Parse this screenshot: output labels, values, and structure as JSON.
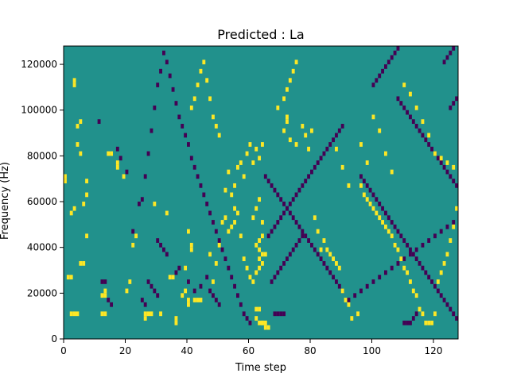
{
  "chart_data": {
    "type": "heatmap",
    "title": "Predicted : La",
    "xlabel": "Time step",
    "ylabel": "Frequency (Hz)",
    "xlim": [
      0,
      128
    ],
    "ylim": [
      0,
      128000
    ],
    "x_ticks": [
      0,
      20,
      40,
      60,
      80,
      100,
      120
    ],
    "y_ticks": [
      0,
      20000,
      40000,
      60000,
      80000,
      100000,
      120000
    ],
    "x_tick_labels": [
      "0",
      "20",
      "40",
      "60",
      "80",
      "100",
      "120"
    ],
    "y_tick_labels": [
      "0",
      "20000",
      "40000",
      "60000",
      "80000",
      "100000",
      "120000"
    ],
    "grid": false,
    "n_time_steps": 128,
    "n_freq_bins": 64,
    "freq_bin_hz": 2000,
    "colors": {
      "background": "#21918c",
      "high": "#fde725",
      "low": "#440154"
    },
    "high_cells": [
      [
        2,
        5
      ],
      [
        3,
        5
      ],
      [
        4,
        5
      ],
      [
        0,
        34
      ],
      [
        0,
        35
      ],
      [
        3,
        56
      ],
      [
        3,
        55
      ],
      [
        4,
        46
      ],
      [
        5,
        47
      ],
      [
        4,
        42
      ],
      [
        5,
        40
      ],
      [
        2,
        27
      ],
      [
        3,
        28
      ],
      [
        1,
        13
      ],
      [
        2,
        13
      ],
      [
        5,
        16
      ],
      [
        6,
        16
      ],
      [
        6,
        29
      ],
      [
        7,
        31
      ],
      [
        7,
        34
      ],
      [
        7,
        22
      ],
      [
        12,
        5
      ],
      [
        13,
        5
      ],
      [
        12,
        9
      ],
      [
        13,
        9
      ],
      [
        13,
        10
      ],
      [
        14,
        40
      ],
      [
        15,
        40
      ],
      [
        17,
        38
      ],
      [
        17,
        37
      ],
      [
        19,
        35
      ],
      [
        20,
        10
      ],
      [
        21,
        12
      ],
      [
        22,
        20
      ],
      [
        23,
        22
      ],
      [
        26,
        5
      ],
      [
        26,
        4
      ],
      [
        27,
        5
      ],
      [
        28,
        5
      ],
      [
        31,
        5
      ],
      [
        29,
        29
      ],
      [
        33,
        27
      ],
      [
        34,
        13
      ],
      [
        35,
        13
      ],
      [
        36,
        4
      ],
      [
        36,
        3
      ],
      [
        38,
        9
      ],
      [
        39,
        10
      ],
      [
        40,
        8
      ],
      [
        40,
        7
      ],
      [
        39,
        15
      ],
      [
        40,
        23
      ],
      [
        41,
        19
      ],
      [
        41,
        20
      ],
      [
        42,
        8
      ],
      [
        43,
        8
      ],
      [
        44,
        8
      ],
      [
        47,
        18
      ],
      [
        48,
        12
      ],
      [
        49,
        16
      ],
      [
        50,
        20
      ],
      [
        51,
        25
      ],
      [
        52,
        26
      ],
      [
        53,
        23
      ],
      [
        54,
        24
      ],
      [
        55,
        25
      ],
      [
        52,
        32
      ],
      [
        53,
        36
      ],
      [
        54,
        31
      ],
      [
        55,
        33
      ],
      [
        56,
        37
      ],
      [
        57,
        38
      ],
      [
        58,
        35
      ],
      [
        59,
        40
      ],
      [
        60,
        42
      ],
      [
        61,
        38
      ],
      [
        62,
        41
      ],
      [
        63,
        39
      ],
      [
        64,
        42
      ],
      [
        55,
        28
      ],
      [
        56,
        27
      ],
      [
        57,
        22
      ],
      [
        58,
        17
      ],
      [
        59,
        15
      ],
      [
        60,
        13
      ],
      [
        61,
        12
      ],
      [
        62,
        4
      ],
      [
        63,
        3
      ],
      [
        64,
        3
      ],
      [
        62,
        6
      ],
      [
        63,
        6
      ],
      [
        64,
        3
      ],
      [
        65,
        3
      ],
      [
        62,
        20
      ],
      [
        63,
        21
      ],
      [
        64,
        22
      ],
      [
        61,
        26
      ],
      [
        62,
        28
      ],
      [
        63,
        30
      ],
      [
        64,
        25
      ],
      [
        63,
        19
      ],
      [
        64,
        18
      ],
      [
        65,
        18
      ],
      [
        63,
        17
      ],
      [
        64,
        16
      ],
      [
        62,
        14
      ],
      [
        63,
        15
      ],
      [
        65,
        2
      ],
      [
        66,
        2
      ],
      [
        69,
        50
      ],
      [
        71,
        45
      ],
      [
        72,
        47
      ],
      [
        72,
        48
      ],
      [
        73,
        43
      ],
      [
        75,
        42
      ],
      [
        77,
        46
      ],
      [
        78,
        44
      ],
      [
        79,
        41
      ],
      [
        80,
        45
      ],
      [
        81,
        26
      ],
      [
        82,
        23
      ],
      [
        83,
        19
      ],
      [
        84,
        21
      ],
      [
        85,
        19
      ],
      [
        86,
        18
      ],
      [
        87,
        17
      ],
      [
        88,
        16
      ],
      [
        89,
        15
      ],
      [
        90,
        10
      ],
      [
        91,
        8
      ],
      [
        92,
        7
      ],
      [
        93,
        4
      ],
      [
        95,
        5
      ],
      [
        96,
        33
      ],
      [
        97,
        31
      ],
      [
        98,
        30
      ],
      [
        99,
        29
      ],
      [
        100,
        28
      ],
      [
        101,
        27
      ],
      [
        102,
        26
      ],
      [
        103,
        25
      ],
      [
        104,
        24
      ],
      [
        105,
        23
      ],
      [
        106,
        22
      ],
      [
        107,
        20
      ],
      [
        108,
        19
      ],
      [
        109,
        17
      ],
      [
        110,
        15
      ],
      [
        111,
        14
      ],
      [
        112,
        12
      ],
      [
        113,
        10
      ],
      [
        114,
        9
      ],
      [
        115,
        6
      ],
      [
        116,
        5
      ],
      [
        117,
        3
      ],
      [
        118,
        3
      ],
      [
        119,
        3
      ],
      [
        120,
        5
      ],
      [
        121,
        12
      ],
      [
        122,
        14
      ],
      [
        123,
        16
      ],
      [
        124,
        18
      ],
      [
        125,
        21
      ],
      [
        126,
        24
      ],
      [
        127,
        28
      ],
      [
        41,
        50
      ],
      [
        42,
        52
      ],
      [
        43,
        55
      ],
      [
        44,
        58
      ],
      [
        45,
        60
      ],
      [
        46,
        56
      ],
      [
        47,
        52
      ],
      [
        48,
        48
      ],
      [
        49,
        46
      ],
      [
        50,
        44
      ],
      [
        71,
        52
      ],
      [
        72,
        54
      ],
      [
        73,
        56
      ],
      [
        74,
        58
      ],
      [
        75,
        60
      ],
      [
        88,
        41
      ],
      [
        90,
        37
      ],
      [
        92,
        33
      ],
      [
        96,
        42
      ],
      [
        98,
        38
      ],
      [
        100,
        48
      ],
      [
        102,
        45
      ],
      [
        104,
        40
      ],
      [
        106,
        36
      ],
      [
        110,
        55
      ],
      [
        112,
        53
      ],
      [
        114,
        50
      ],
      [
        116,
        47
      ],
      [
        118,
        44
      ],
      [
        120,
        40
      ],
      [
        122,
        39
      ],
      [
        124,
        38
      ],
      [
        126,
        37
      ]
    ],
    "low_cells": [
      [
        11,
        47
      ],
      [
        12,
        12
      ],
      [
        13,
        12
      ],
      [
        14,
        8
      ],
      [
        15,
        7
      ],
      [
        17,
        41
      ],
      [
        18,
        39
      ],
      [
        20,
        36
      ],
      [
        22,
        23
      ],
      [
        24,
        29
      ],
      [
        25,
        30
      ],
      [
        26,
        35
      ],
      [
        27,
        40
      ],
      [
        28,
        45
      ],
      [
        29,
        50
      ],
      [
        30,
        55
      ],
      [
        31,
        58
      ],
      [
        32,
        62
      ],
      [
        33,
        60
      ],
      [
        34,
        57
      ],
      [
        35,
        54
      ],
      [
        36,
        51
      ],
      [
        37,
        48
      ],
      [
        38,
        46
      ],
      [
        39,
        44
      ],
      [
        40,
        42
      ],
      [
        41,
        39
      ],
      [
        42,
        37
      ],
      [
        43,
        35
      ],
      [
        44,
        33
      ],
      [
        45,
        31
      ],
      [
        46,
        29
      ],
      [
        47,
        27
      ],
      [
        48,
        25
      ],
      [
        49,
        23
      ],
      [
        50,
        21
      ],
      [
        51,
        19
      ],
      [
        52,
        17
      ],
      [
        53,
        15
      ],
      [
        54,
        13
      ],
      [
        55,
        11
      ],
      [
        56,
        9
      ],
      [
        57,
        7
      ],
      [
        58,
        5
      ],
      [
        59,
        4
      ],
      [
        60,
        3
      ],
      [
        30,
        21
      ],
      [
        31,
        20
      ],
      [
        32,
        19
      ],
      [
        33,
        18
      ],
      [
        27,
        12
      ],
      [
        28,
        11
      ],
      [
        29,
        10
      ],
      [
        30,
        9
      ],
      [
        25,
        8
      ],
      [
        26,
        7
      ],
      [
        35,
        13
      ],
      [
        36,
        14
      ],
      [
        37,
        15
      ],
      [
        40,
        12
      ],
      [
        42,
        10
      ],
      [
        44,
        11
      ],
      [
        46,
        13
      ],
      [
        47,
        10
      ],
      [
        48,
        9
      ],
      [
        49,
        8
      ],
      [
        50,
        7
      ],
      [
        65,
        35
      ],
      [
        66,
        34
      ],
      [
        67,
        33
      ],
      [
        68,
        32
      ],
      [
        69,
        31
      ],
      [
        70,
        30
      ],
      [
        71,
        29
      ],
      [
        72,
        28
      ],
      [
        73,
        27
      ],
      [
        74,
        26
      ],
      [
        75,
        25
      ],
      [
        76,
        24
      ],
      [
        77,
        23
      ],
      [
        78,
        22
      ],
      [
        79,
        21
      ],
      [
        80,
        20
      ],
      [
        81,
        19
      ],
      [
        82,
        18
      ],
      [
        83,
        17
      ],
      [
        84,
        16
      ],
      [
        85,
        15
      ],
      [
        86,
        14
      ],
      [
        87,
        13
      ],
      [
        88,
        12
      ],
      [
        89,
        11
      ],
      [
        90,
        10
      ],
      [
        66,
        22
      ],
      [
        67,
        23
      ],
      [
        68,
        24
      ],
      [
        69,
        25
      ],
      [
        70,
        26
      ],
      [
        71,
        27
      ],
      [
        72,
        28
      ],
      [
        73,
        29
      ],
      [
        74,
        30
      ],
      [
        75,
        31
      ],
      [
        76,
        32
      ],
      [
        77,
        33
      ],
      [
        78,
        34
      ],
      [
        79,
        35
      ],
      [
        80,
        36
      ],
      [
        81,
        37
      ],
      [
        82,
        38
      ],
      [
        83,
        39
      ],
      [
        84,
        40
      ],
      [
        85,
        41
      ],
      [
        86,
        42
      ],
      [
        87,
        43
      ],
      [
        88,
        44
      ],
      [
        89,
        45
      ],
      [
        90,
        46
      ],
      [
        68,
        5
      ],
      [
        69,
        5
      ],
      [
        70,
        5
      ],
      [
        71,
        5
      ],
      [
        67,
        12
      ],
      [
        68,
        13
      ],
      [
        69,
        14
      ],
      [
        70,
        15
      ],
      [
        71,
        16
      ],
      [
        72,
        17
      ],
      [
        73,
        18
      ],
      [
        74,
        19
      ],
      [
        75,
        20
      ],
      [
        76,
        21
      ],
      [
        77,
        22
      ],
      [
        96,
        35
      ],
      [
        97,
        34
      ],
      [
        98,
        33
      ],
      [
        99,
        32
      ],
      [
        100,
        31
      ],
      [
        101,
        30
      ],
      [
        102,
        29
      ],
      [
        103,
        28
      ],
      [
        104,
        27
      ],
      [
        105,
        26
      ],
      [
        106,
        25
      ],
      [
        107,
        24
      ],
      [
        108,
        23
      ],
      [
        109,
        22
      ],
      [
        110,
        21
      ],
      [
        111,
        20
      ],
      [
        112,
        19
      ],
      [
        113,
        18
      ],
      [
        114,
        17
      ],
      [
        115,
        16
      ],
      [
        116,
        15
      ],
      [
        117,
        14
      ],
      [
        118,
        13
      ],
      [
        119,
        12
      ],
      [
        120,
        11
      ],
      [
        121,
        10
      ],
      [
        122,
        9
      ],
      [
        123,
        8
      ],
      [
        124,
        7
      ],
      [
        125,
        6
      ],
      [
        126,
        5
      ],
      [
        127,
        4
      ],
      [
        110,
        3
      ],
      [
        111,
        3
      ],
      [
        112,
        3
      ],
      [
        113,
        4
      ],
      [
        114,
        5
      ],
      [
        125,
        50
      ],
      [
        126,
        51
      ],
      [
        127,
        52
      ],
      [
        123,
        60
      ],
      [
        124,
        61
      ],
      [
        125,
        62
      ],
      [
        126,
        63
      ],
      [
        100,
        55
      ],
      [
        101,
        56
      ],
      [
        102,
        57
      ],
      [
        103,
        58
      ],
      [
        104,
        59
      ],
      [
        105,
        60
      ],
      [
        106,
        61
      ],
      [
        107,
        62
      ],
      [
        108,
        63
      ],
      [
        108,
        52
      ],
      [
        109,
        51
      ],
      [
        110,
        50
      ],
      [
        111,
        49
      ],
      [
        112,
        48
      ],
      [
        113,
        47
      ],
      [
        114,
        46
      ],
      [
        115,
        45
      ],
      [
        116,
        44
      ],
      [
        117,
        43
      ],
      [
        118,
        42
      ],
      [
        119,
        41
      ],
      [
        120,
        40
      ],
      [
        121,
        39
      ],
      [
        122,
        38
      ],
      [
        123,
        37
      ],
      [
        124,
        36
      ],
      [
        125,
        35
      ],
      [
        126,
        34
      ],
      [
        127,
        33
      ],
      [
        92,
        8
      ],
      [
        94,
        9
      ],
      [
        96,
        10
      ],
      [
        98,
        11
      ],
      [
        100,
        12
      ],
      [
        102,
        13
      ],
      [
        104,
        14
      ],
      [
        106,
        15
      ],
      [
        108,
        16
      ],
      [
        110,
        17
      ],
      [
        112,
        18
      ],
      [
        114,
        19
      ],
      [
        116,
        20
      ],
      [
        118,
        21
      ],
      [
        120,
        22
      ],
      [
        122,
        23
      ],
      [
        124,
        24
      ],
      [
        126,
        25
      ]
    ]
  }
}
